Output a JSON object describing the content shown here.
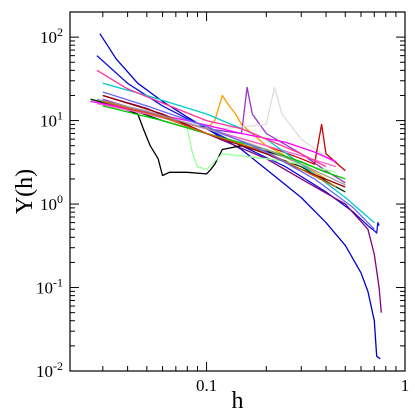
{
  "chart_data": {
    "type": "line",
    "title": "",
    "xlabel": "h",
    "ylabel": "Υ(h)",
    "x_scale": "log",
    "y_scale": "log",
    "xlim": [
      0.0205,
      1.0
    ],
    "ylim": [
      0.01,
      200
    ],
    "x_ticks": [
      {
        "value": 0.1,
        "label": "0.1"
      },
      {
        "value": 1,
        "label": "1"
      }
    ],
    "y_ticks": [
      {
        "value": 100,
        "label": "10",
        "exp": "2"
      },
      {
        "value": 10,
        "label": "10",
        "exp": "1"
      },
      {
        "value": 1,
        "label": "10",
        "exp": "0"
      },
      {
        "value": 0.1,
        "label": "10",
        "exp": "-1"
      },
      {
        "value": 0.01,
        "label": "10",
        "exp": "-2"
      }
    ],
    "grid": false,
    "legend": "none",
    "series": [
      {
        "color": "#0000cc",
        "points": [
          [
            0.029,
            110
          ],
          [
            0.035,
            55
          ],
          [
            0.045,
            28
          ],
          [
            0.06,
            17
          ],
          [
            0.08,
            11
          ],
          [
            0.1,
            8
          ],
          [
            0.15,
            4.5
          ],
          [
            0.2,
            2.6
          ],
          [
            0.3,
            1.2
          ],
          [
            0.4,
            0.6
          ],
          [
            0.5,
            0.32
          ],
          [
            0.6,
            0.15
          ],
          [
            0.65,
            0.09
          ],
          [
            0.7,
            0.04
          ],
          [
            0.72,
            0.015
          ],
          [
            0.75,
            0.014
          ]
        ]
      },
      {
        "color": "#1010e0",
        "points": [
          [
            0.028,
            60
          ],
          [
            0.04,
            28
          ],
          [
            0.06,
            15
          ],
          [
            0.1,
            8
          ],
          [
            0.15,
            5
          ],
          [
            0.25,
            2.8
          ],
          [
            0.4,
            1.4
          ],
          [
            0.55,
            0.8
          ],
          [
            0.65,
            0.55
          ],
          [
            0.7,
            0.48
          ],
          [
            0.72,
            0.45
          ],
          [
            0.73,
            0.6
          ],
          [
            0.74,
            0.55
          ]
        ]
      },
      {
        "color": "#800080",
        "points": [
          [
            0.03,
            20
          ],
          [
            0.05,
            14
          ],
          [
            0.1,
            7
          ],
          [
            0.2,
            3.5
          ],
          [
            0.3,
            2
          ],
          [
            0.5,
            1
          ],
          [
            0.65,
            0.5
          ],
          [
            0.7,
            0.25
          ],
          [
            0.74,
            0.1
          ],
          [
            0.76,
            0.05
          ]
        ]
      },
      {
        "color": "#000000",
        "points": [
          [
            0.026,
            18
          ],
          [
            0.035,
            15
          ],
          [
            0.045,
            12
          ],
          [
            0.048,
            8
          ],
          [
            0.052,
            5
          ],
          [
            0.057,
            3.5
          ],
          [
            0.06,
            2.2
          ],
          [
            0.065,
            2.4
          ],
          [
            0.08,
            2.4
          ],
          [
            0.1,
            2.3
          ],
          [
            0.105,
            2.6
          ],
          [
            0.11,
            3
          ],
          [
            0.12,
            4.5
          ],
          [
            0.15,
            5
          ],
          [
            0.2,
            4.3
          ],
          [
            0.3,
            3.2
          ],
          [
            0.4,
            2.4
          ]
        ]
      },
      {
        "color": "#003300",
        "points": [
          [
            0.026,
            18
          ],
          [
            0.04,
            14
          ],
          [
            0.06,
            10
          ],
          [
            0.1,
            7
          ],
          [
            0.2,
            4
          ],
          [
            0.3,
            2.8
          ],
          [
            0.45,
            1.6
          ],
          [
            0.5,
            1.4
          ]
        ]
      },
      {
        "color": "#ff9900",
        "points": [
          [
            0.03,
            17
          ],
          [
            0.06,
            11
          ],
          [
            0.1,
            8
          ],
          [
            0.11,
            10
          ],
          [
            0.12,
            20
          ],
          [
            0.13,
            15
          ],
          [
            0.14,
            12
          ],
          [
            0.15,
            9
          ],
          [
            0.2,
            5
          ],
          [
            0.3,
            3
          ],
          [
            0.4,
            2
          ]
        ]
      },
      {
        "color": "#9933cc",
        "points": [
          [
            0.03,
            18
          ],
          [
            0.06,
            11
          ],
          [
            0.1,
            8
          ],
          [
            0.15,
            7
          ],
          [
            0.16,
            25
          ],
          [
            0.17,
            12
          ],
          [
            0.2,
            7
          ],
          [
            0.3,
            4
          ],
          [
            0.4,
            2.5
          ],
          [
            0.5,
            1.8
          ]
        ]
      },
      {
        "color": "#dddddd",
        "points": [
          [
            0.03,
            17
          ],
          [
            0.07,
            10
          ],
          [
            0.12,
            8
          ],
          [
            0.2,
            9
          ],
          [
            0.22,
            25
          ],
          [
            0.24,
            12
          ],
          [
            0.3,
            6
          ],
          [
            0.45,
            3
          ]
        ]
      },
      {
        "color": "#cc0000",
        "points": [
          [
            0.03,
            16
          ],
          [
            0.06,
            11
          ],
          [
            0.1,
            8
          ],
          [
            0.2,
            5
          ],
          [
            0.3,
            3.5
          ],
          [
            0.35,
            3
          ],
          [
            0.38,
            9
          ],
          [
            0.4,
            4
          ],
          [
            0.5,
            2.5
          ]
        ]
      },
      {
        "color": "#ff00ff",
        "points": [
          [
            0.026,
            17
          ],
          [
            0.04,
            14
          ],
          [
            0.08,
            10
          ],
          [
            0.15,
            7
          ],
          [
            0.25,
            5.5
          ],
          [
            0.35,
            4.2
          ],
          [
            0.45,
            3.2
          ]
        ]
      },
      {
        "color": "#ff66cc",
        "points": [
          [
            0.028,
            16
          ],
          [
            0.05,
            12
          ],
          [
            0.1,
            8
          ],
          [
            0.2,
            5
          ],
          [
            0.3,
            3.8
          ],
          [
            0.45,
            2.8
          ]
        ]
      },
      {
        "color": "#00cccc",
        "points": [
          [
            0.03,
            28
          ],
          [
            0.05,
            20
          ],
          [
            0.1,
            12
          ],
          [
            0.2,
            6
          ],
          [
            0.3,
            3
          ],
          [
            0.5,
            1.2
          ],
          [
            0.7,
            0.6
          ]
        ]
      },
      {
        "color": "#99ff99",
        "points": [
          [
            0.08,
            8
          ],
          [
            0.085,
            4
          ],
          [
            0.09,
            2.8
          ],
          [
            0.1,
            2.6
          ],
          [
            0.12,
            4
          ],
          [
            0.2,
            3.5
          ],
          [
            0.3,
            3
          ],
          [
            0.45,
            2.4
          ]
        ]
      },
      {
        "color": "#00cc00",
        "points": [
          [
            0.03,
            15
          ],
          [
            0.06,
            10
          ],
          [
            0.1,
            7
          ],
          [
            0.2,
            4.5
          ],
          [
            0.3,
            3.2
          ],
          [
            0.4,
            2.4
          ],
          [
            0.5,
            2
          ]
        ]
      },
      {
        "color": "#990000",
        "points": [
          [
            0.03,
            20
          ],
          [
            0.06,
            12
          ],
          [
            0.1,
            7
          ],
          [
            0.2,
            4
          ],
          [
            0.3,
            2.6
          ],
          [
            0.5,
            1.6
          ]
        ]
      },
      {
        "color": "#999999",
        "points": [
          [
            0.028,
            18
          ],
          [
            0.05,
            13
          ],
          [
            0.1,
            8
          ],
          [
            0.2,
            4.5
          ],
          [
            0.3,
            3
          ],
          [
            0.5,
            1.7
          ]
        ]
      },
      {
        "color": "#cc6600",
        "points": [
          [
            0.03,
            17
          ],
          [
            0.06,
            11
          ],
          [
            0.1,
            7
          ],
          [
            0.2,
            4.2
          ],
          [
            0.3,
            2.6
          ],
          [
            0.45,
            1.6
          ]
        ]
      },
      {
        "color": "#6666ff",
        "points": [
          [
            0.03,
            22
          ],
          [
            0.05,
            15
          ],
          [
            0.1,
            8.5
          ],
          [
            0.2,
            4.2
          ],
          [
            0.35,
            2
          ],
          [
            0.55,
            0.9
          ],
          [
            0.7,
            0.5
          ]
        ]
      },
      {
        "color": "#ff3399",
        "points": [
          [
            0.028,
            40
          ],
          [
            0.04,
            24
          ],
          [
            0.07,
            14
          ],
          [
            0.1,
            10
          ],
          [
            0.15,
            8
          ],
          [
            0.2,
            6
          ],
          [
            0.3,
            4
          ],
          [
            0.4,
            2.8
          ]
        ]
      }
    ]
  }
}
